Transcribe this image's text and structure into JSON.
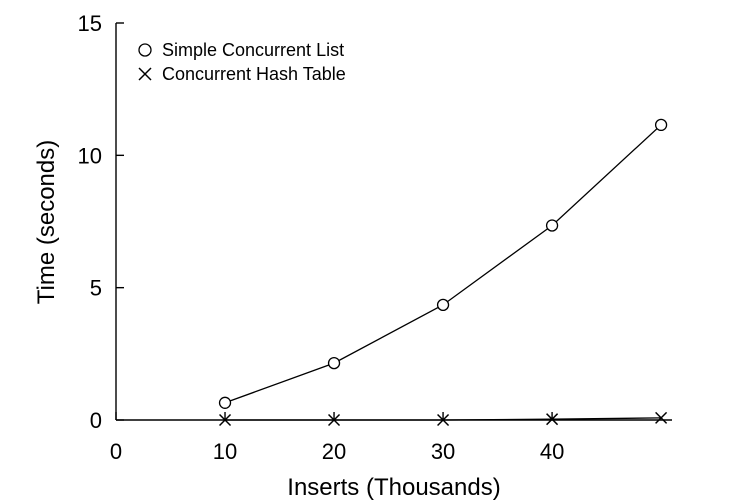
{
  "chart_data": {
    "type": "line",
    "xlabel": "Inserts (Thousands)",
    "ylabel": "Time (seconds)",
    "xlim": [
      0,
      51
    ],
    "ylim": [
      0,
      15
    ],
    "x_ticks": [
      0,
      10,
      20,
      30,
      40
    ],
    "y_ticks": [
      0,
      5,
      10,
      15
    ],
    "legend_position": "top-left",
    "series": [
      {
        "name": "Simple Concurrent List",
        "marker": "circle",
        "x": [
          10,
          20,
          30,
          40,
          50
        ],
        "values": [
          0.65,
          2.15,
          4.35,
          7.35,
          11.15
        ]
      },
      {
        "name": "Concurrent Hash Table",
        "marker": "x",
        "x": [
          10,
          20,
          30,
          40,
          50
        ],
        "values": [
          0.0,
          0.0,
          0.0,
          0.03,
          0.08
        ]
      }
    ]
  }
}
